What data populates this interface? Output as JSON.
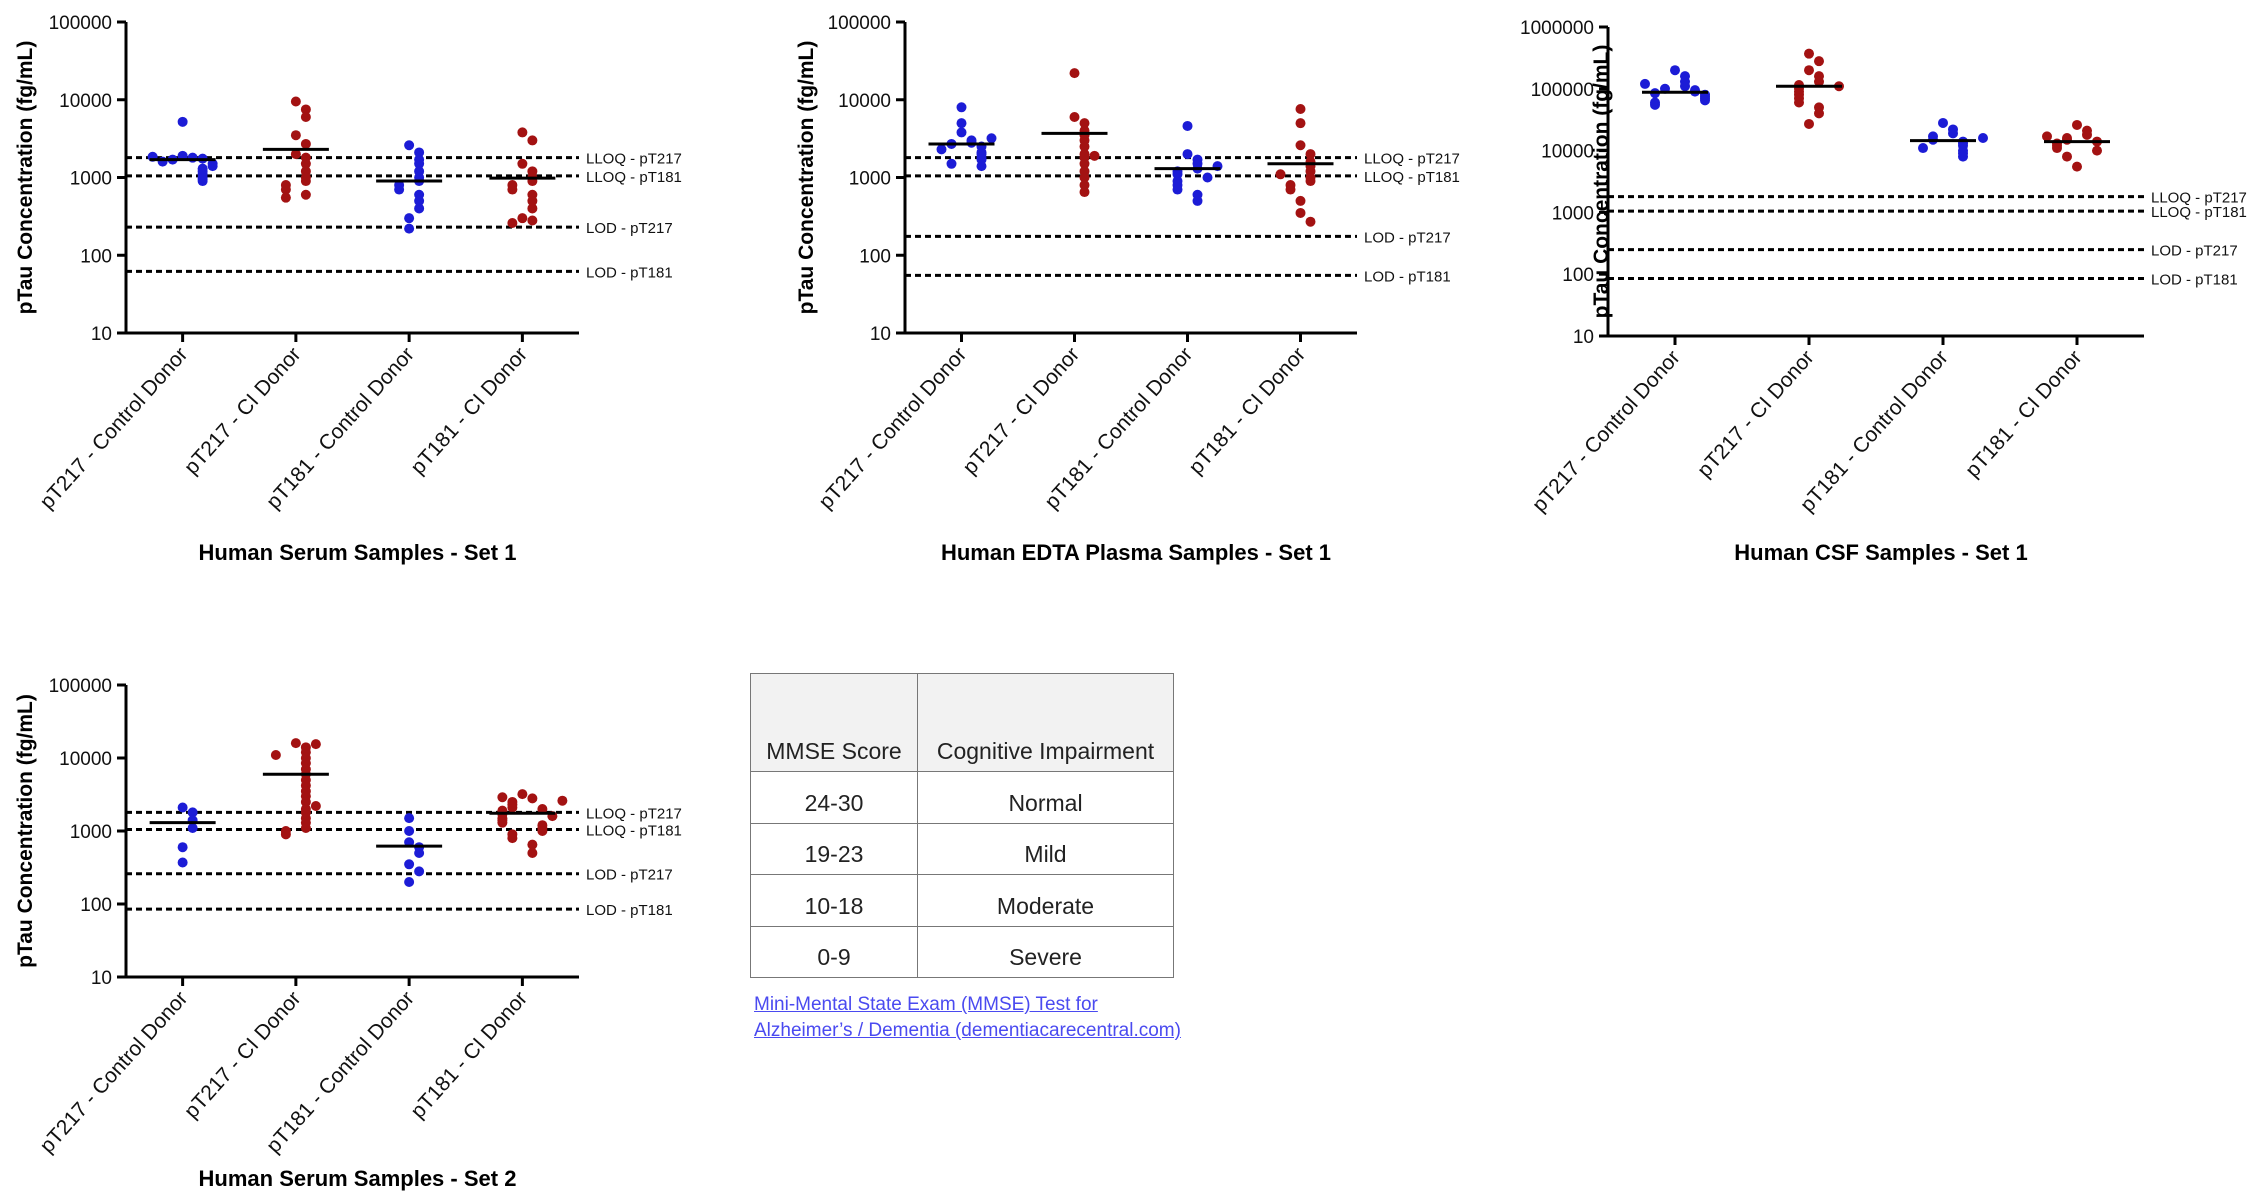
{
  "chart_data": [
    {
      "type": "strip",
      "log_scale": true,
      "ylabel": "pTau Concentration (fg/mL)",
      "title": "Human Serum Samples - Set 1",
      "categories": [
        "pT217 - Control Donor",
        "pT217 - CI Donor",
        "pT181 - Control Donor",
        "pT181 - CI Donor"
      ],
      "colors": [
        "#1c1cd6",
        "#a31212",
        "#1c1cd6",
        "#a31212"
      ],
      "values": [
        [
          5200,
          1900,
          1800,
          1700,
          1750,
          1600,
          1500,
          1400,
          1300,
          1200,
          1100,
          1000,
          950,
          900,
          1850
        ],
        [
          9500,
          7500,
          6000,
          3500,
          2700,
          2000,
          1800,
          1500,
          1200,
          1000,
          900,
          800,
          700,
          600,
          550
        ],
        [
          2600,
          2100,
          1700,
          1500,
          1200,
          1000,
          900,
          800,
          700,
          600,
          500,
          400,
          300,
          220
        ],
        [
          3800,
          3000,
          1500,
          1200,
          1000,
          900,
          800,
          700,
          600,
          500,
          400,
          300,
          280,
          260
        ]
      ],
      "means": [
        1700,
        2300,
        900,
        980
      ],
      "reference_lines": [
        {
          "label": "LLOQ - pT217",
          "value": 1800
        },
        {
          "label": "LLOQ - pT181",
          "value": 1050
        },
        {
          "label": "LOD - pT217",
          "value": 230
        },
        {
          "label": "LOD - pT181",
          "value": 62
        }
      ],
      "ylim": [
        10,
        100000
      ],
      "yticks": [
        10,
        100,
        1000,
        10000,
        100000
      ]
    },
    {
      "type": "strip",
      "log_scale": true,
      "ylabel": "pTau Concentration (fg/mL)",
      "title": "Human EDTA Plasma Samples - Set 1",
      "categories": [
        "pT217 - Control Donor",
        "pT217 - CI Donor",
        "pT181 - Control Donor",
        "pT181 - CI Donor"
      ],
      "colors": [
        "#1c1cd6",
        "#a31212",
        "#1c1cd6",
        "#a31212"
      ],
      "values": [
        [
          8000,
          5000,
          3800,
          3000,
          2800,
          2700,
          2500,
          2300,
          2100,
          2000,
          1800,
          1700,
          1500,
          1400,
          3200
        ],
        [
          22000,
          6000,
          5000,
          4000,
          3500,
          3000,
          2500,
          2000,
          1800,
          1500,
          1200,
          1000,
          800,
          650,
          1900
        ],
        [
          4600,
          2000,
          1700,
          1500,
          1300,
          1200,
          1100,
          1000,
          900,
          800,
          700,
          600,
          500,
          1400
        ],
        [
          7600,
          5000,
          2600,
          2000,
          1600,
          1400,
          1200,
          1000,
          900,
          800,
          700,
          500,
          350,
          270,
          1100
        ]
      ],
      "means": [
        2700,
        3700,
        1300,
        1500
      ],
      "reference_lines": [
        {
          "label": "LLOQ - pT217",
          "value": 1800
        },
        {
          "label": "LLOQ - pT181",
          "value": 1050
        },
        {
          "label": "LOD - pT217",
          "value": 175
        },
        {
          "label": "LOD - pT181",
          "value": 55
        }
      ],
      "ylim": [
        10,
        100000
      ],
      "yticks": [
        10,
        100,
        1000,
        10000,
        100000
      ]
    },
    {
      "type": "strip",
      "log_scale": true,
      "ylabel": "pTau Concentration (fg/mL)",
      "title": "Human CSF Samples - Set 1",
      "categories": [
        "pT217 - Control Donor",
        "pT217 - CI Donor",
        "pT181 - Control Donor",
        "pT181 - CI Donor"
      ],
      "colors": [
        "#1c1cd6",
        "#a31212",
        "#1c1cd6",
        "#a31212"
      ],
      "values": [
        [
          200000,
          160000,
          130000,
          110000,
          100000,
          95000,
          90000,
          85000,
          80000,
          75000,
          70000,
          65000,
          60000,
          55000,
          120000
        ],
        [
          370000,
          280000,
          200000,
          160000,
          130000,
          115000,
          100000,
          90000,
          80000,
          70000,
          60000,
          50000,
          40000,
          27000,
          110000
        ],
        [
          28000,
          22000,
          19000,
          17000,
          15000,
          14000,
          13000,
          12000,
          11000,
          10000,
          9000,
          8000,
          16000
        ],
        [
          26000,
          21000,
          18000,
          16000,
          15000,
          14000,
          13000,
          12000,
          11000,
          10000,
          8000,
          5500,
          17000
        ]
      ],
      "means": [
        88000,
        110000,
        14500,
        14000
      ],
      "reference_lines": [
        {
          "label": "LLOQ - pT217",
          "value": 1800
        },
        {
          "label": "LLOQ - pT181",
          "value": 1050
        },
        {
          "label": "LOD - pT217",
          "value": 250
        },
        {
          "label": "LOD - pT181",
          "value": 85
        }
      ],
      "ylim": [
        10,
        1000000
      ],
      "yticks": [
        10,
        100,
        1000,
        10000,
        100000,
        1000000
      ]
    },
    {
      "type": "strip",
      "log_scale": true,
      "ylabel": "pTau Concentration (fg/mL)",
      "title": "Human Serum Samples - Set 2",
      "categories": [
        "pT217 - Control Donor",
        "pT217 - CI Donor",
        "pT181 - Control Donor",
        "pT181 - CI Donor"
      ],
      "colors": [
        "#1c1cd6",
        "#a31212",
        "#1c1cd6",
        "#a31212"
      ],
      "values": [
        [
          2100,
          1800,
          1400,
          1100,
          600,
          370
        ],
        [
          16000,
          14000,
          12000,
          10000,
          8500,
          7000,
          6000,
          5000,
          4200,
          3500,
          3000,
          2500,
          2000,
          1800,
          1500,
          1300,
          1100,
          1000,
          900,
          15500,
          11000,
          2200
        ],
        [
          1500,
          1000,
          700,
          600,
          500,
          350,
          280,
          200
        ],
        [
          3200,
          2800,
          2500,
          2300,
          2100,
          2000,
          1900,
          1800,
          1700,
          1600,
          1500,
          1400,
          1300,
          1200,
          1100,
          1000,
          900,
          800,
          650,
          500,
          2900,
          2600
        ]
      ],
      "means": [
        1300,
        6000,
        620,
        1750
      ],
      "reference_lines": [
        {
          "label": "LLOQ - pT217",
          "value": 1800
        },
        {
          "label": "LLOQ - pT181",
          "value": 1050
        },
        {
          "label": "LOD - pT217",
          "value": 260
        },
        {
          "label": "LOD - pT181",
          "value": 85
        }
      ],
      "ylim": [
        10,
        100000
      ],
      "yticks": [
        10,
        100,
        1000,
        10000,
        100000
      ]
    }
  ],
  "table": {
    "header": [
      "MMSE Score",
      "Cognitive Impairment"
    ],
    "rows": [
      [
        "24-30",
        "Normal"
      ],
      [
        "19-23",
        "Mild"
      ],
      [
        "10-18",
        "Moderate"
      ],
      [
        "0-9",
        "Severe"
      ]
    ]
  },
  "link": {
    "text": "Mini-Mental State Exam (MMSE) Test for Alzheimer’s / Dementia (dementiacarecentral.com)"
  }
}
